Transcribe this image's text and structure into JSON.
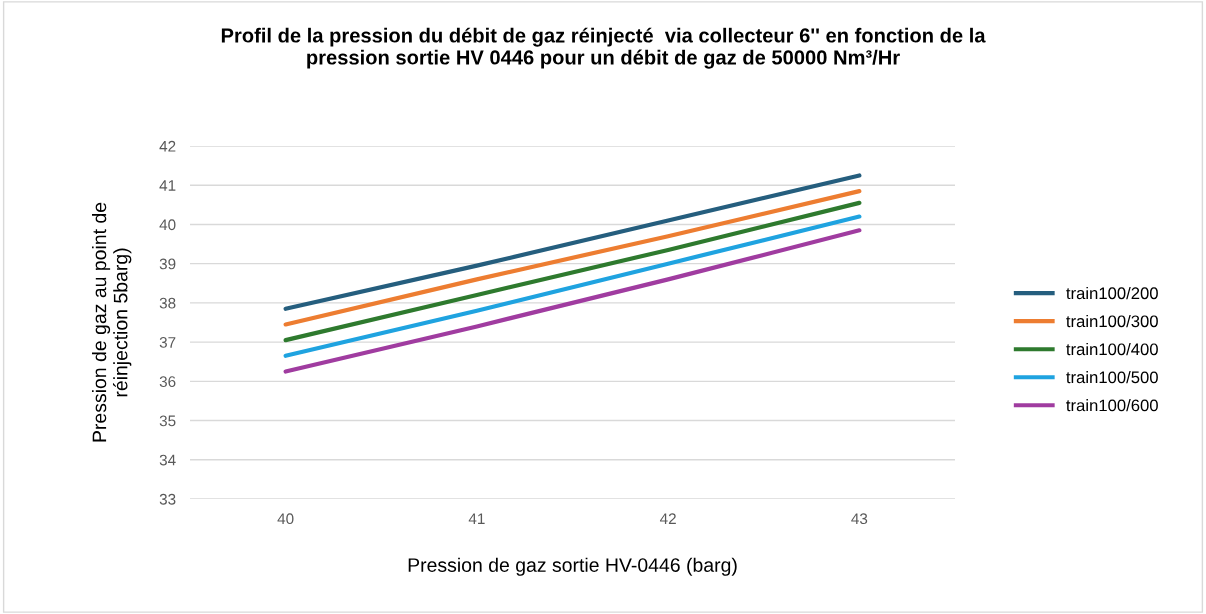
{
  "chart_data": {
    "type": "line",
    "title": "Profil de la pression du débit de gaz réinjecté  via collecteur 6'' en fonction de la\npression sortie HV 0446 pour un débit de gaz de 50000 Nm³/Hr",
    "xlabel": "Pression de gaz sortie HV-0446 (barg)",
    "ylabel": "Pression de gaz au point de\nréinjection 5barg)",
    "categories": [
      "40",
      "41",
      "42",
      "43"
    ],
    "series": [
      {
        "name": "train100/200",
        "color": "#255e7e",
        "values": [
          37.85,
          38.95,
          40.1,
          41.25
        ]
      },
      {
        "name": "train100/300",
        "color": "#ed7d31",
        "values": [
          37.45,
          38.6,
          39.7,
          40.85
        ]
      },
      {
        "name": "train100/400",
        "color": "#2e7a2e",
        "values": [
          37.05,
          38.2,
          39.35,
          40.55
        ]
      },
      {
        "name": "train100/500",
        "color": "#1fa3e0",
        "values": [
          36.65,
          37.8,
          39.0,
          40.2
        ]
      },
      {
        "name": "train100/600",
        "color": "#a03ca0",
        "values": [
          36.25,
          37.4,
          38.6,
          39.85
        ]
      }
    ],
    "ylim": [
      33,
      42
    ],
    "yticks": [
      33,
      34,
      35,
      36,
      37,
      38,
      39,
      40,
      41,
      42
    ],
    "grid": "y",
    "legend": "right",
    "marker": "none",
    "line_style": "solid"
  }
}
